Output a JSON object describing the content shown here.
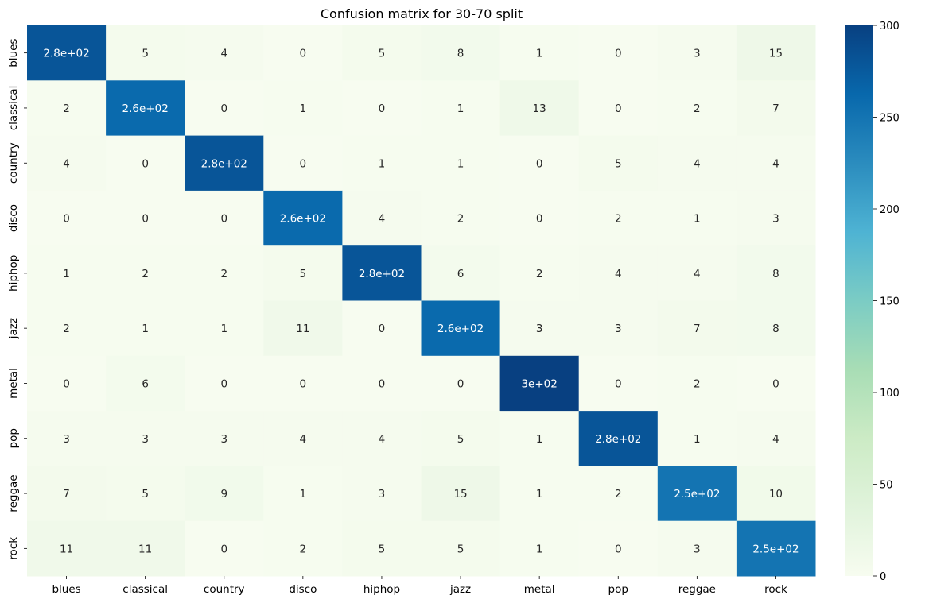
{
  "chart_data": {
    "type": "heatmap",
    "title": "Confusion matrix for 30-70 split",
    "x_labels": [
      "blues",
      "classical",
      "country",
      "disco",
      "hiphop",
      "jazz",
      "metal",
      "pop",
      "reggae",
      "rock"
    ],
    "y_labels": [
      "blues",
      "classical",
      "country",
      "disco",
      "hiphop",
      "jazz",
      "metal",
      "pop",
      "reggae",
      "rock"
    ],
    "values": [
      [
        280,
        5,
        4,
        0,
        5,
        8,
        1,
        0,
        3,
        15
      ],
      [
        2,
        260,
        0,
        1,
        0,
        1,
        13,
        0,
        2,
        7
      ],
      [
        4,
        0,
        280,
        0,
        1,
        1,
        0,
        5,
        4,
        4
      ],
      [
        0,
        0,
        0,
        260,
        4,
        2,
        0,
        2,
        1,
        3
      ],
      [
        1,
        2,
        2,
        5,
        280,
        6,
        2,
        4,
        4,
        8
      ],
      [
        2,
        1,
        1,
        11,
        0,
        260,
        3,
        3,
        7,
        8
      ],
      [
        0,
        6,
        0,
        0,
        0,
        0,
        300,
        0,
        2,
        0
      ],
      [
        3,
        3,
        3,
        4,
        4,
        5,
        1,
        280,
        1,
        4
      ],
      [
        7,
        5,
        9,
        1,
        3,
        15,
        1,
        2,
        250,
        10
      ],
      [
        11,
        11,
        0,
        2,
        5,
        5,
        1,
        0,
        3,
        250
      ]
    ],
    "cell_labels": [
      [
        "2.8e+02",
        "5",
        "4",
        "0",
        "5",
        "8",
        "1",
        "0",
        "3",
        "15"
      ],
      [
        "2",
        "2.6e+02",
        "0",
        "1",
        "0",
        "1",
        "13",
        "0",
        "2",
        "7"
      ],
      [
        "4",
        "0",
        "2.8e+02",
        "0",
        "1",
        "1",
        "0",
        "5",
        "4",
        "4"
      ],
      [
        "0",
        "0",
        "0",
        "2.6e+02",
        "4",
        "2",
        "0",
        "2",
        "1",
        "3"
      ],
      [
        "1",
        "2",
        "2",
        "5",
        "2.8e+02",
        "6",
        "2",
        "4",
        "4",
        "8"
      ],
      [
        "2",
        "1",
        "1",
        "11",
        "0",
        "2.6e+02",
        "3",
        "3",
        "7",
        "8"
      ],
      [
        "0",
        "6",
        "0",
        "0",
        "0",
        "0",
        "3e+02",
        "0",
        "2",
        "0"
      ],
      [
        "3",
        "3",
        "3",
        "4",
        "4",
        "5",
        "1",
        "2.8e+02",
        "1",
        "4"
      ],
      [
        "7",
        "5",
        "9",
        "1",
        "3",
        "15",
        "1",
        "2",
        "2.5e+02",
        "10"
      ],
      [
        "11",
        "11",
        "0",
        "2",
        "5",
        "5",
        "1",
        "0",
        "3",
        "2.5e+02"
      ]
    ],
    "colormap": "GnBu",
    "vmin": 0,
    "vmax": 300,
    "colorbar_ticks": [
      0,
      50,
      100,
      150,
      200,
      250,
      300
    ],
    "colorbar_tick_labels": [
      "0",
      "50",
      "100",
      "150",
      "200",
      "250",
      "300"
    ],
    "annotation_colors": {
      "dark": "#262626",
      "light": "#ffffff"
    }
  }
}
